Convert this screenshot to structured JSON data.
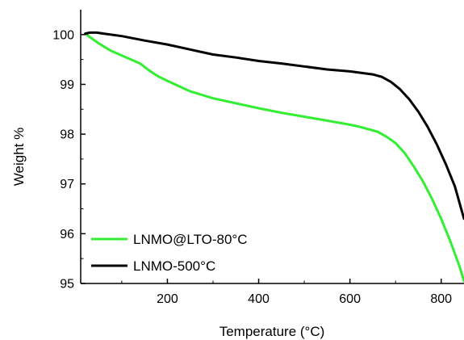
{
  "chart_data": {
    "type": "line",
    "title": "",
    "xlabel": "Temperature (°C)",
    "ylabel": "Weight %",
    "xlim": [
      10,
      850
    ],
    "ylim": [
      95,
      100.5
    ],
    "x_ticks": [
      200,
      400,
      600,
      800
    ],
    "y_ticks": [
      95,
      96,
      97,
      98,
      99,
      100
    ],
    "grid": false,
    "legend_position": "bottom-left",
    "series": [
      {
        "name": "LNMO@LTO-80°C",
        "color": "#33ee33",
        "points": [
          [
            20,
            100.02
          ],
          [
            30,
            99.95
          ],
          [
            50,
            99.82
          ],
          [
            75,
            99.68
          ],
          [
            100,
            99.58
          ],
          [
            125,
            99.48
          ],
          [
            140,
            99.42
          ],
          [
            160,
            99.28
          ],
          [
            180,
            99.16
          ],
          [
            200,
            99.07
          ],
          [
            250,
            98.86
          ],
          [
            300,
            98.72
          ],
          [
            350,
            98.62
          ],
          [
            400,
            98.52
          ],
          [
            450,
            98.43
          ],
          [
            500,
            98.35
          ],
          [
            550,
            98.27
          ],
          [
            600,
            98.19
          ],
          [
            620,
            98.15
          ],
          [
            660,
            98.05
          ],
          [
            680,
            97.95
          ],
          [
            700,
            97.82
          ],
          [
            720,
            97.62
          ],
          [
            740,
            97.35
          ],
          [
            760,
            97.05
          ],
          [
            780,
            96.7
          ],
          [
            800,
            96.3
          ],
          [
            820,
            95.85
          ],
          [
            840,
            95.35
          ],
          [
            850,
            95.05
          ]
        ]
      },
      {
        "name": "LNMO-500°C",
        "color": "#000000",
        "points": [
          [
            20,
            100.02
          ],
          [
            30,
            100.04
          ],
          [
            45,
            100.04
          ],
          [
            60,
            100.02
          ],
          [
            100,
            99.97
          ],
          [
            150,
            99.88
          ],
          [
            200,
            99.8
          ],
          [
            250,
            99.7
          ],
          [
            300,
            99.6
          ],
          [
            350,
            99.54
          ],
          [
            400,
            99.47
          ],
          [
            450,
            99.42
          ],
          [
            500,
            99.36
          ],
          [
            550,
            99.3
          ],
          [
            600,
            99.26
          ],
          [
            650,
            99.2
          ],
          [
            670,
            99.15
          ],
          [
            690,
            99.05
          ],
          [
            710,
            98.9
          ],
          [
            730,
            98.7
          ],
          [
            750,
            98.45
          ],
          [
            770,
            98.15
          ],
          [
            790,
            97.8
          ],
          [
            810,
            97.4
          ],
          [
            830,
            96.95
          ],
          [
            850,
            96.3
          ]
        ]
      }
    ]
  }
}
